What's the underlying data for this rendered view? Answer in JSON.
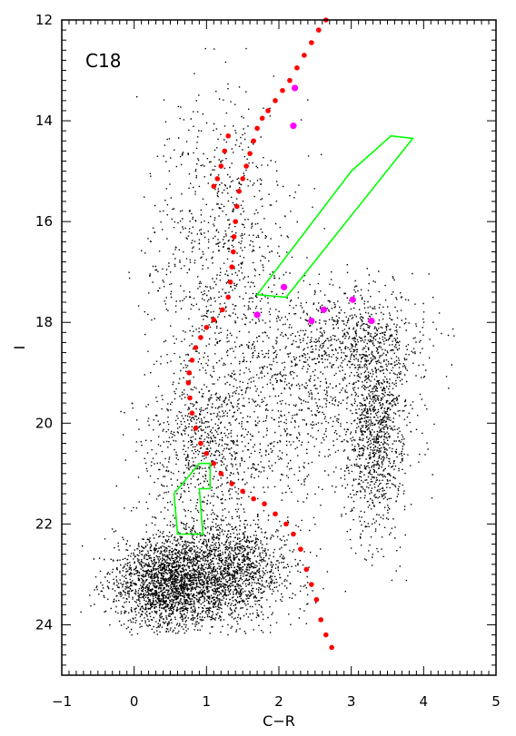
{
  "chart_data": {
    "type": "scatter",
    "title": "",
    "panel_label": "C18",
    "xlabel": "C−R",
    "ylabel": "I",
    "xlim": [
      -1,
      5
    ],
    "ylim": [
      25,
      12
    ],
    "y_inverted": true,
    "grid": false,
    "x_ticks": [
      -1,
      0,
      1,
      2,
      3,
      4,
      5
    ],
    "x_tick_labels": [
      "−1",
      "0",
      "1",
      "2",
      "3",
      "4",
      "5"
    ],
    "y_ticks": [
      12,
      14,
      16,
      18,
      20,
      22,
      24
    ],
    "y_tick_labels": [
      "12",
      "14",
      "16",
      "18",
      "20",
      "22",
      "24"
    ],
    "colors": {
      "field": "#000000",
      "isochrone": "#ff0000",
      "highlight": "#ff00ff",
      "box": "#00ff00",
      "axes": "#000000"
    },
    "field_population": {
      "color": "#000000",
      "estimated_points": 14000,
      "clumps": [
        {
          "center": [
            0.45,
            23.2
          ],
          "sigma": [
            0.38,
            0.45
          ]
        },
        {
          "center": [
            1.25,
            22.9
          ],
          "sigma": [
            0.45,
            0.5
          ]
        },
        {
          "center": [
            3.35,
            20.2
          ],
          "sigma": [
            0.2,
            1.0
          ]
        },
        {
          "center": [
            3.0,
            18.3
          ],
          "sigma": [
            0.5,
            0.5
          ]
        },
        {
          "center": [
            1.2,
            16.8
          ],
          "sigma": [
            0.5,
            1.6
          ]
        },
        {
          "center": [
            2.3,
            19.5
          ],
          "sigma": [
            0.7,
            1.0
          ]
        },
        {
          "center": [
            1.0,
            20.5
          ],
          "sigma": [
            0.45,
            0.8
          ]
        }
      ]
    },
    "isochrone": {
      "color": "#ff0000",
      "points": [
        {
          "x": 2.65,
          "y": 12.0
        },
        {
          "x": 2.55,
          "y": 12.2
        },
        {
          "x": 2.45,
          "y": 12.45
        },
        {
          "x": 2.35,
          "y": 12.7
        },
        {
          "x": 2.25,
          "y": 12.95
        },
        {
          "x": 2.15,
          "y": 13.2
        },
        {
          "x": 2.05,
          "y": 13.4
        },
        {
          "x": 1.95,
          "y": 13.6
        },
        {
          "x": 1.85,
          "y": 13.8
        },
        {
          "x": 1.77,
          "y": 13.95
        },
        {
          "x": 1.7,
          "y": 14.15
        },
        {
          "x": 1.65,
          "y": 14.4
        },
        {
          "x": 1.6,
          "y": 14.65
        },
        {
          "x": 1.55,
          "y": 14.9
        },
        {
          "x": 1.5,
          "y": 15.15
        },
        {
          "x": 1.45,
          "y": 15.4
        },
        {
          "x": 1.42,
          "y": 15.7
        },
        {
          "x": 1.4,
          "y": 16.0
        },
        {
          "x": 1.38,
          "y": 16.3
        },
        {
          "x": 1.37,
          "y": 16.6
        },
        {
          "x": 1.35,
          "y": 16.9
        },
        {
          "x": 1.33,
          "y": 17.2
        },
        {
          "x": 1.3,
          "y": 17.5
        },
        {
          "x": 1.22,
          "y": 17.75
        },
        {
          "x": 1.1,
          "y": 17.95
        },
        {
          "x": 1.0,
          "y": 18.1
        },
        {
          "x": 0.92,
          "y": 18.3
        },
        {
          "x": 0.85,
          "y": 18.5
        },
        {
          "x": 0.8,
          "y": 18.75
        },
        {
          "x": 0.76,
          "y": 19.0
        },
        {
          "x": 0.75,
          "y": 19.2
        },
        {
          "x": 0.77,
          "y": 19.5
        },
        {
          "x": 0.8,
          "y": 19.8
        },
        {
          "x": 0.85,
          "y": 20.1
        },
        {
          "x": 0.92,
          "y": 20.4
        },
        {
          "x": 1.0,
          "y": 20.6
        },
        {
          "x": 1.1,
          "y": 20.8
        },
        {
          "x": 1.2,
          "y": 21.0
        },
        {
          "x": 1.35,
          "y": 21.2
        },
        {
          "x": 1.5,
          "y": 21.35
        },
        {
          "x": 1.65,
          "y": 21.5
        },
        {
          "x": 1.8,
          "y": 21.6
        },
        {
          "x": 1.95,
          "y": 21.8
        },
        {
          "x": 2.1,
          "y": 22.0
        },
        {
          "x": 2.2,
          "y": 22.2
        },
        {
          "x": 2.3,
          "y": 22.5
        },
        {
          "x": 2.38,
          "y": 22.9
        },
        {
          "x": 2.45,
          "y": 23.2
        },
        {
          "x": 2.52,
          "y": 23.5
        },
        {
          "x": 2.58,
          "y": 23.9
        },
        {
          "x": 2.65,
          "y": 24.2
        },
        {
          "x": 2.73,
          "y": 24.45
        },
        {
          "x": 1.3,
          "y": 14.3
        },
        {
          "x": 1.25,
          "y": 14.6
        },
        {
          "x": 1.2,
          "y": 14.9
        },
        {
          "x": 1.15,
          "y": 15.15
        },
        {
          "x": 1.1,
          "y": 15.3
        }
      ]
    },
    "highlighted_stars": {
      "color": "#ff00ff",
      "points": [
        {
          "x": 2.22,
          "y": 13.35
        },
        {
          "x": 2.2,
          "y": 14.1
        },
        {
          "x": 2.07,
          "y": 17.3
        },
        {
          "x": 1.7,
          "y": 17.85
        },
        {
          "x": 2.45,
          "y": 17.97
        },
        {
          "x": 2.62,
          "y": 17.75
        },
        {
          "x": 3.02,
          "y": 17.55
        },
        {
          "x": 3.28,
          "y": 17.97
        }
      ]
    },
    "selection_boxes": [
      {
        "color": "#00ff00",
        "vertices": [
          [
            3.55,
            14.3
          ],
          [
            3.85,
            14.35
          ],
          [
            2.1,
            17.5
          ],
          [
            1.7,
            17.45
          ],
          [
            3.0,
            15.0
          ]
        ]
      },
      {
        "color": "#00ff00",
        "vertices": [
          [
            0.9,
            20.8
          ],
          [
            1.05,
            20.8
          ],
          [
            1.05,
            21.3
          ],
          [
            0.9,
            21.3
          ],
          [
            0.95,
            22.2
          ],
          [
            0.6,
            22.2
          ],
          [
            0.55,
            21.4
          ]
        ]
      }
    ]
  }
}
